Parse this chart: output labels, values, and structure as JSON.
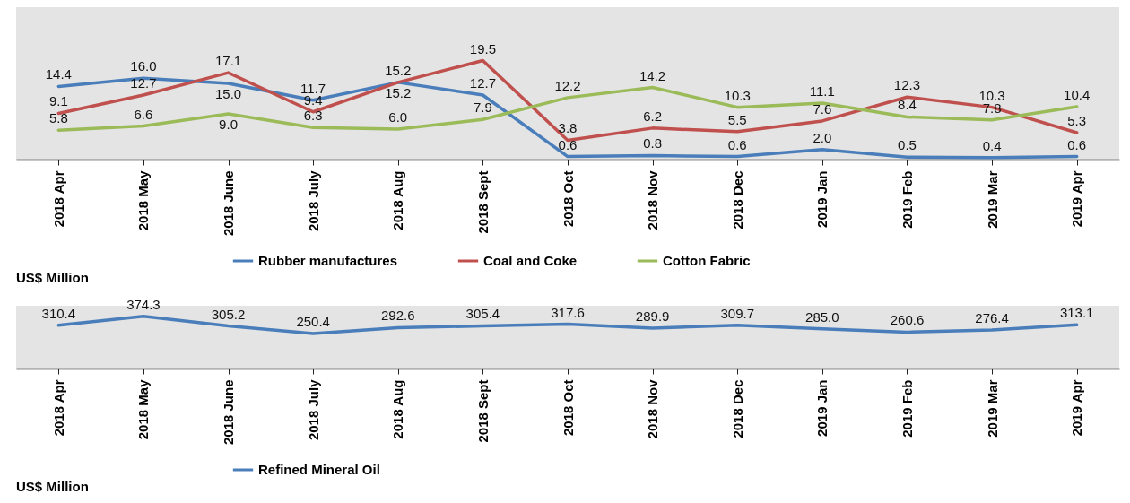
{
  "chart_data": [
    {
      "type": "line",
      "annotations": [
        "US$ Million"
      ],
      "categories": [
        "2018 Apr",
        "2018 May",
        "2018 June",
        "2018 July",
        "2018 Aug",
        "2018 Sept",
        "2018 Oct",
        "2018 Nov",
        "2018 Dec",
        "2019 Jan",
        "2019 Feb",
        "2019 Mar",
        "2019 Apr"
      ],
      "series": [
        {
          "name": "Rubber manufactures",
          "color": "#4a7ebb",
          "values": [
            14.4,
            16.0,
            15.0,
            11.7,
            15.2,
            12.7,
            0.6,
            0.8,
            0.6,
            2.0,
            0.5,
            0.4,
            0.6
          ],
          "value_labels": [
            "14.4",
            "16.0",
            "15.0",
            "11.7",
            "15.2",
            "12.7",
            "0.6",
            "0.8",
            "0.6",
            "2.0",
            "0.5",
            "0.4",
            "0.6"
          ]
        },
        {
          "name": "Coal and Coke",
          "color": "#c0504d",
          "values": [
            9.1,
            12.7,
            17.1,
            9.4,
            15.2,
            19.5,
            3.8,
            6.2,
            5.5,
            7.6,
            12.3,
            10.3,
            5.3
          ],
          "value_labels": [
            "9.1",
            "12.7",
            "17.1",
            "9.4",
            "15.2",
            "19.5",
            "3.8",
            "6.2",
            "5.5",
            "7.6",
            "12.3",
            "10.3",
            "5.3"
          ]
        },
        {
          "name": "Cotton Fabric",
          "color": "#9bbb59",
          "values": [
            5.8,
            6.6,
            9.0,
            6.3,
            6.0,
            7.9,
            12.2,
            14.2,
            10.3,
            11.1,
            8.4,
            7.8,
            10.4
          ],
          "value_labels": [
            "5.8",
            "6.6",
            "9.0",
            "6.3",
            "6.0",
            "7.9",
            "12.2",
            "14.2",
            "10.3",
            "11.1",
            "8.4",
            "7.8",
            "10.4"
          ]
        }
      ],
      "ylim": [
        0,
        30
      ],
      "tick_labels": "x",
      "legend": "bottom",
      "marker": "none",
      "line_style": "solid"
    },
    {
      "type": "line",
      "annotations": [
        "US$ Million"
      ],
      "categories": [
        "2018 Apr",
        "2018 May",
        "2018 June",
        "2018 July",
        "2018 Aug",
        "2018 Sept",
        "2018 Oct",
        "2018 Nov",
        "2018 Dec",
        "2019 Jan",
        "2019 Feb",
        "2019 Mar",
        "2019 Apr"
      ],
      "series": [
        {
          "name": "Refined Mineral Oil",
          "color": "#4a7ebb",
          "values": [
            310.4,
            374.3,
            305.2,
            250.4,
            292.6,
            305.4,
            317.6,
            289.9,
            309.7,
            285.0,
            260.6,
            276.4,
            313.1
          ],
          "value_labels": [
            "310.4",
            "374.3",
            "305.2",
            "250.4",
            "292.6",
            "305.4",
            "317.6",
            "289.9",
            "309.7",
            "285.0",
            "260.6",
            "276.4",
            "313.1"
          ]
        }
      ],
      "ylim": [
        0,
        450
      ],
      "tick_labels": "x",
      "legend": "bottom",
      "marker": "none",
      "line_style": "solid"
    }
  ]
}
